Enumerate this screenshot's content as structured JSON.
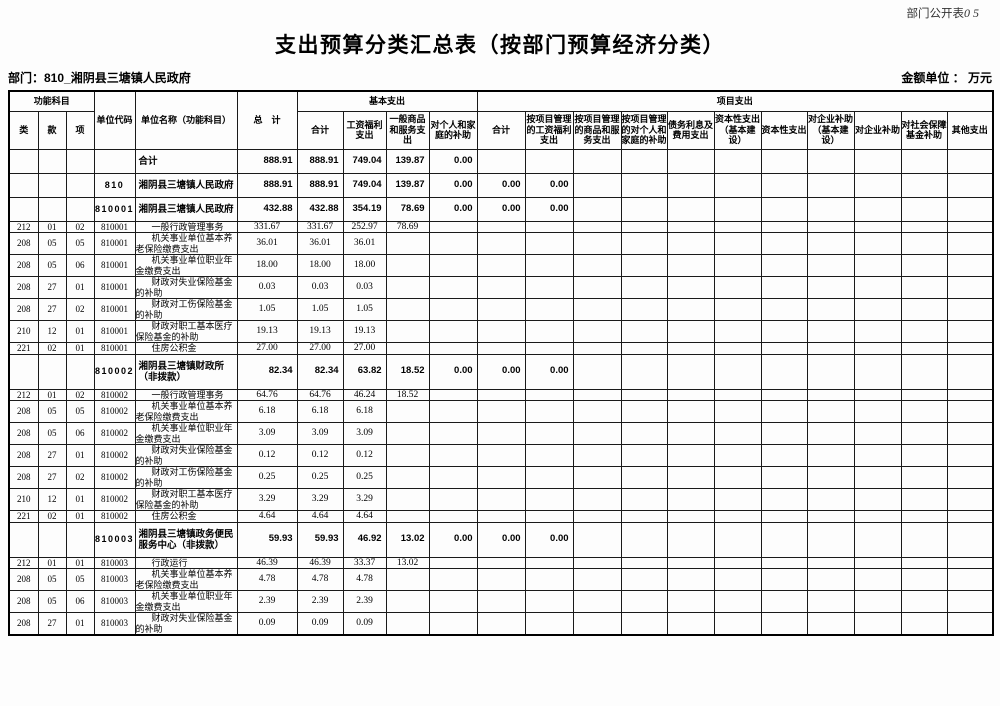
{
  "page": {
    "corner_label": "部门公开表",
    "corner_number": "05",
    "title": "支出预算分类汇总表（按部门预算经济分类）",
    "department_line": "部门：810_湘阴县三塘镇人民政府",
    "amount_unit_line": "金额单位 ： 万元"
  },
  "table": {
    "header": {
      "func_group": "功能科目",
      "cls": "类",
      "sec": "款",
      "item": "项",
      "unit_code": "单位代码",
      "unit_name": "单位名称（功能科目）",
      "total": "总　计",
      "basic_group": "基本支出",
      "project_group": "项目支出",
      "basic_cols": [
        "合计",
        "工资福利支出",
        "一般商品和服务支出",
        "对个人和家庭的补助"
      ],
      "project_cols": [
        "合计",
        "按项目管理的工资福利支出",
        "按项目管理的商品和服务支出",
        "按项目管理的对个人和家庭的补助",
        "债务利息及费用支出",
        "资本性支出（基本建设）",
        "资本性支出",
        "对企业补助（基本建设）",
        "对企业补助",
        "对社会保障基金补助",
        "其他支出"
      ]
    },
    "rows": [
      {
        "bold": true,
        "cls": "",
        "sec": "",
        "item": "",
        "code": "",
        "name": "合计",
        "cells": [
          "888.91",
          "888.91",
          "749.04",
          "139.87",
          "0.00"
        ]
      },
      {
        "bold": true,
        "cls": "",
        "sec": "",
        "item": "",
        "code": "810",
        "name": "湘阴县三塘镇人民政府",
        "cells": [
          "888.91",
          "888.91",
          "749.04",
          "139.87",
          "0.00",
          "0.00",
          "0.00"
        ]
      },
      {
        "bold": true,
        "cls": "",
        "sec": "",
        "item": "",
        "code": "810001",
        "name": "湘阴县三塘镇人民政府",
        "cells": [
          "432.88",
          "432.88",
          "354.19",
          "78.69",
          "0.00",
          "0.00",
          "0.00"
        ]
      },
      {
        "bold": false,
        "cls": "212",
        "sec": "01",
        "item": "02",
        "code": "810001",
        "name": "一般行政管理事务",
        "cells": [
          "331.67",
          "331.67",
          "252.97",
          "78.69"
        ]
      },
      {
        "bold": false,
        "cls": "208",
        "sec": "05",
        "item": "05",
        "code": "810001",
        "name": "机关事业单位基本养老保险缴费支出",
        "cells": [
          "36.01",
          "36.01",
          "36.01"
        ]
      },
      {
        "bold": false,
        "cls": "208",
        "sec": "05",
        "item": "06",
        "code": "810001",
        "name": "机关事业单位职业年金缴费支出",
        "cells": [
          "18.00",
          "18.00",
          "18.00"
        ]
      },
      {
        "bold": false,
        "cls": "208",
        "sec": "27",
        "item": "01",
        "code": "810001",
        "name": "财政对失业保险基金的补助",
        "cells": [
          "0.03",
          "0.03",
          "0.03"
        ]
      },
      {
        "bold": false,
        "cls": "208",
        "sec": "27",
        "item": "02",
        "code": "810001",
        "name": "财政对工伤保险基金的补助",
        "cells": [
          "1.05",
          "1.05",
          "1.05"
        ]
      },
      {
        "bold": false,
        "cls": "210",
        "sec": "12",
        "item": "01",
        "code": "810001",
        "name": "财政对职工基本医疗保险基金的补助",
        "cells": [
          "19.13",
          "19.13",
          "19.13"
        ]
      },
      {
        "bold": false,
        "cls": "221",
        "sec": "02",
        "item": "01",
        "code": "810001",
        "name": "住房公积金",
        "cells": [
          "27.00",
          "27.00",
          "27.00"
        ]
      },
      {
        "bold": true,
        "cls": "",
        "sec": "",
        "item": "",
        "code": "810002",
        "name": "湘阴县三塘镇财政所（非拨款）",
        "cells": [
          "82.34",
          "82.34",
          "63.82",
          "18.52",
          "0.00",
          "0.00",
          "0.00"
        ]
      },
      {
        "bold": false,
        "cls": "212",
        "sec": "01",
        "item": "02",
        "code": "810002",
        "name": "一般行政管理事务",
        "cells": [
          "64.76",
          "64.76",
          "46.24",
          "18.52"
        ]
      },
      {
        "bold": false,
        "cls": "208",
        "sec": "05",
        "item": "05",
        "code": "810002",
        "name": "机关事业单位基本养老保险缴费支出",
        "cells": [
          "6.18",
          "6.18",
          "6.18"
        ]
      },
      {
        "bold": false,
        "cls": "208",
        "sec": "05",
        "item": "06",
        "code": "810002",
        "name": "机关事业单位职业年金缴费支出",
        "cells": [
          "3.09",
          "3.09",
          "3.09"
        ]
      },
      {
        "bold": false,
        "cls": "208",
        "sec": "27",
        "item": "01",
        "code": "810002",
        "name": "财政对失业保险基金的补助",
        "cells": [
          "0.12",
          "0.12",
          "0.12"
        ]
      },
      {
        "bold": false,
        "cls": "208",
        "sec": "27",
        "item": "02",
        "code": "810002",
        "name": "财政对工伤保险基金的补助",
        "cells": [
          "0.25",
          "0.25",
          "0.25"
        ]
      },
      {
        "bold": false,
        "cls": "210",
        "sec": "12",
        "item": "01",
        "code": "810002",
        "name": "财政对职工基本医疗保险基金的补助",
        "cells": [
          "3.29",
          "3.29",
          "3.29"
        ]
      },
      {
        "bold": false,
        "cls": "221",
        "sec": "02",
        "item": "01",
        "code": "810002",
        "name": "住房公积金",
        "cells": [
          "4.64",
          "4.64",
          "4.64"
        ]
      },
      {
        "bold": true,
        "cls": "",
        "sec": "",
        "item": "",
        "code": "810003",
        "name": "湘阴县三塘镇政务便民服务中心（非拨款）",
        "cells": [
          "59.93",
          "59.93",
          "46.92",
          "13.02",
          "0.00",
          "0.00",
          "0.00"
        ]
      },
      {
        "bold": false,
        "cls": "212",
        "sec": "01",
        "item": "01",
        "code": "810003",
        "name": "行政运行",
        "cells": [
          "46.39",
          "46.39",
          "33.37",
          "13.02"
        ]
      },
      {
        "bold": false,
        "cls": "208",
        "sec": "05",
        "item": "05",
        "code": "810003",
        "name": "机关事业单位基本养老保险缴费支出",
        "cells": [
          "4.78",
          "4.78",
          "4.78"
        ]
      },
      {
        "bold": false,
        "cls": "208",
        "sec": "05",
        "item": "06",
        "code": "810003",
        "name": "机关事业单位职业年金缴费支出",
        "cells": [
          "2.39",
          "2.39",
          "2.39"
        ]
      },
      {
        "bold": false,
        "cls": "208",
        "sec": "27",
        "item": "01",
        "code": "810003",
        "name": "财政对失业保险基金的补助",
        "cells": [
          "0.09",
          "0.09",
          "0.09"
        ]
      }
    ]
  }
}
